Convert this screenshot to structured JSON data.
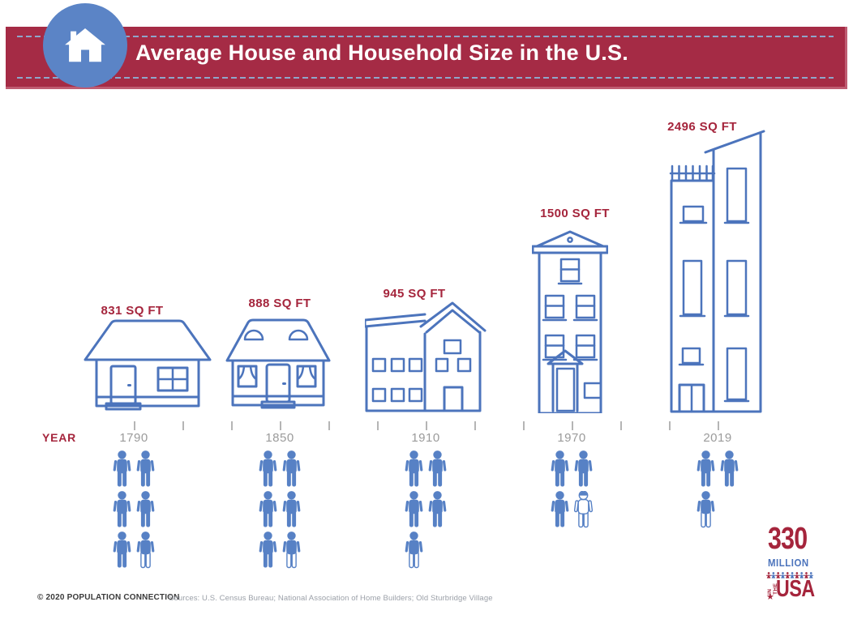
{
  "header": {
    "title": "Average House and Household Size in the U.S."
  },
  "axis_label": "YEAR",
  "groups": [
    {
      "year": "1790",
      "sqft_label": "831 SQ FT",
      "persons": [
        "full",
        "full",
        "full",
        "full",
        "full",
        "partial"
      ]
    },
    {
      "year": "1850",
      "sqft_label": "888 SQ FT",
      "persons": [
        "full",
        "full",
        "full",
        "full",
        "full",
        "partial"
      ]
    },
    {
      "year": "1910",
      "sqft_label": "945 SQ FT",
      "persons": [
        "full",
        "full",
        "full",
        "full",
        "partial"
      ]
    },
    {
      "year": "1970",
      "sqft_label": "1500 SQ FT",
      "persons": [
        "full",
        "full",
        "full",
        "outline"
      ]
    },
    {
      "year": "2019",
      "sqft_label": "2496 SQ FT",
      "persons": [
        "full",
        "full",
        "partial"
      ]
    }
  ],
  "chart_data": {
    "type": "pictogram",
    "title": "Average House and Household Size in the U.S.",
    "xlabel": "YEAR",
    "categories": [
      "1790",
      "1850",
      "1910",
      "1970",
      "2019"
    ],
    "series": [
      {
        "name": "Average house size",
        "unit": "sq ft",
        "values": [
          831,
          888,
          945,
          1500,
          2496
        ],
        "labels": [
          "831 SQ FT",
          "888 SQ FT",
          "945 SQ FT",
          "1500 SQ FT",
          "2496 SQ FT"
        ]
      },
      {
        "name": "Average household size",
        "unit": "person icons",
        "icons": [
          {
            "full": 5,
            "partial": 1
          },
          {
            "full": 5,
            "partial": 1
          },
          {
            "full": 4,
            "partial": 1
          },
          {
            "full": 3,
            "partial": 1
          },
          {
            "full": 2,
            "partial": 1
          }
        ]
      }
    ],
    "x_minor_ticks_between_labels": 2,
    "legend": "none"
  },
  "footer": {
    "copyright": "© 2020 POPULATION CONNECTION",
    "sources": "Sources: U.S. Census Bureau; National Association of Home Builders; Old Sturbridge Village"
  },
  "logo": {
    "number": "330",
    "word": "MILLION",
    "in_the": "IN THE",
    "usa": "USA"
  },
  "colors": {
    "banner_red": "#a52b45",
    "label_red": "#a5253c",
    "house_blue": "#4c74bc",
    "person_blue": "#5781c5",
    "circle_blue": "#5b84c6",
    "year_gray": "#9b9b9b"
  }
}
